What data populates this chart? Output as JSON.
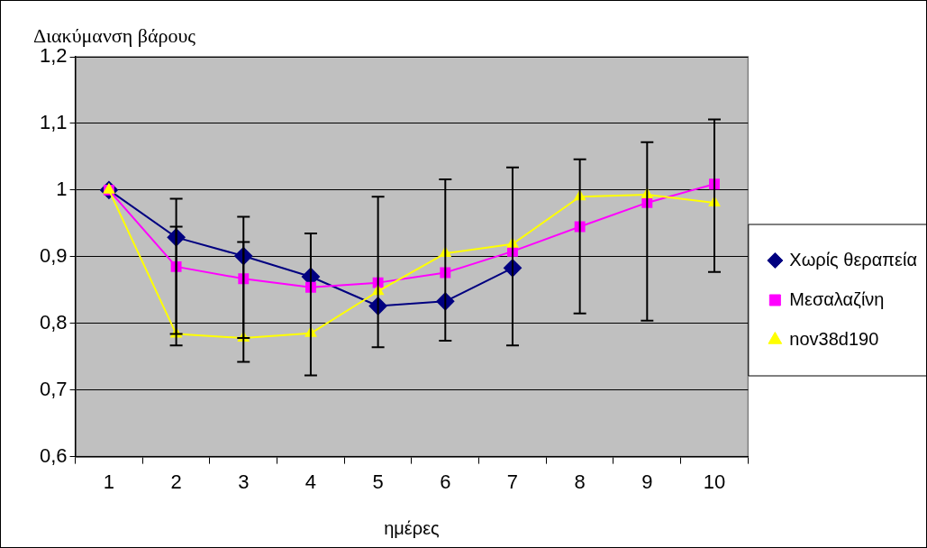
{
  "chart_data": {
    "type": "line",
    "ylabel": "Διακύμανση βάρους",
    "xlabel": "ημέρες",
    "categories": [
      "1",
      "2",
      "3",
      "4",
      "5",
      "6",
      "7",
      "8",
      "9",
      "10"
    ],
    "series": [
      {
        "name": "Χωρίς θεραπεία",
        "color": "#000080",
        "marker": "diamond",
        "values": [
          1.0,
          0.929,
          0.901,
          0.87,
          0.826,
          0.833,
          0.883,
          null,
          null,
          null
        ],
        "errors": [
          null,
          [
            0.767,
            0.987
          ],
          [
            0.742,
            0.96
          ],
          [
            0.722,
            0.935
          ],
          [
            0.764,
            0.99
          ],
          [
            0.774,
            1.016
          ],
          [
            0.767,
            1.034
          ],
          null,
          null,
          null
        ]
      },
      {
        "name": "Μεσαλαζίνη",
        "color": "#ff00ff",
        "marker": "square",
        "values": [
          1.0,
          0.885,
          0.867,
          0.854,
          0.861,
          0.876,
          0.908,
          0.945,
          0.981,
          1.009
        ],
        "errors": [
          null,
          null,
          null,
          null,
          null,
          null,
          null,
          [
            0.815,
            1.046
          ],
          [
            0.804,
            1.072
          ],
          [
            0.877,
            1.106
          ]
        ]
      },
      {
        "name": "nov38d190",
        "color": "#ffff00",
        "marker": "triangle",
        "values": [
          1.0,
          0.784,
          0.778,
          0.785,
          0.848,
          0.905,
          0.919,
          0.99,
          0.993,
          0.981
        ],
        "errors": [
          null,
          [
            0.784,
            0.945
          ],
          [
            0.778,
            0.922
          ],
          null,
          null,
          null,
          null,
          null,
          null,
          null
        ]
      }
    ],
    "ylim": [
      0.6,
      1.2
    ],
    "yticks": [
      {
        "value": 0.6,
        "label": "0,6"
      },
      {
        "value": 0.7,
        "label": "0,7"
      },
      {
        "value": 0.8,
        "label": "0,8"
      },
      {
        "value": 0.9,
        "label": "0,9"
      },
      {
        "value": 1.0,
        "label": "1"
      },
      {
        "value": 1.1,
        "label": "1,1"
      },
      {
        "value": 1.2,
        "label": "1,2"
      }
    ],
    "grid": "y",
    "legend": "right",
    "line_style": "solid"
  }
}
